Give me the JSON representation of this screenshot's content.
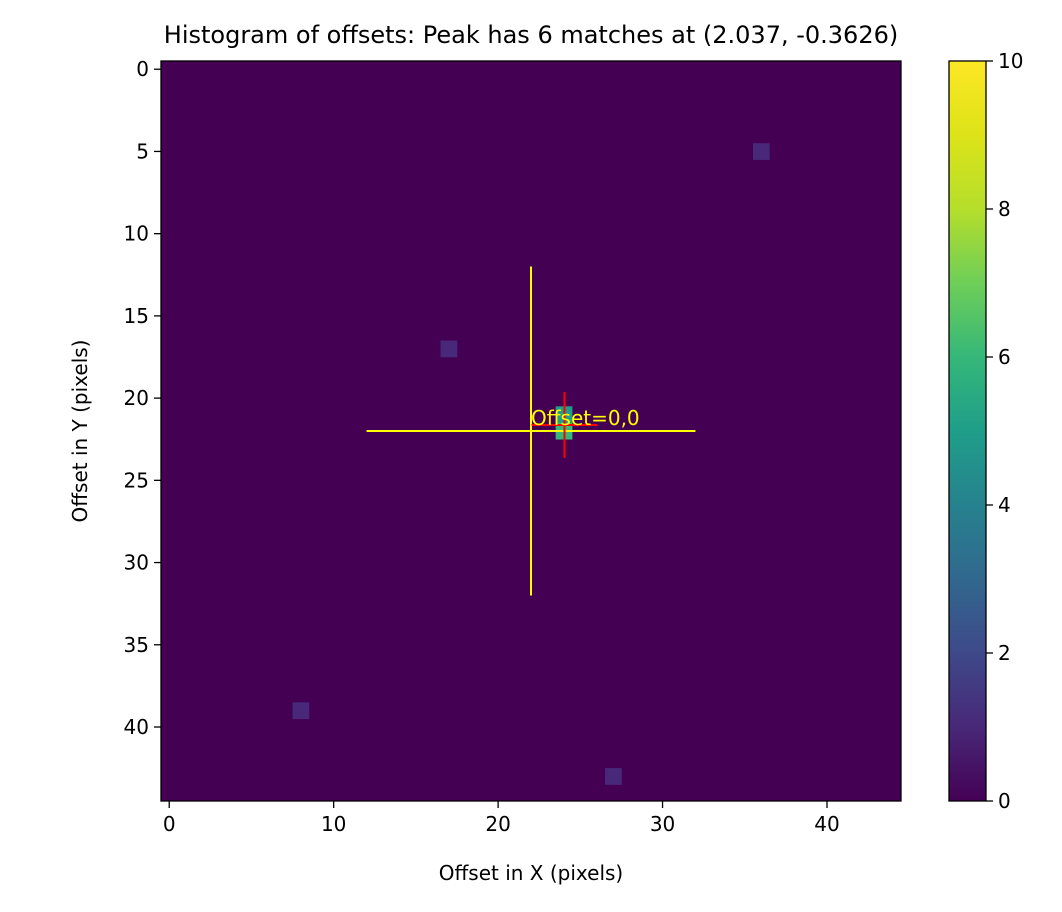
{
  "chart_data": {
    "type": "heatmap",
    "title": "Histogram of offsets: Peak has 6 matches at (2.037, -0.3626)",
    "xlabel": "Offset in X (pixels)",
    "ylabel": "Offset in Y (pixels)",
    "grid_size": [
      45,
      45
    ],
    "xlim": [
      -0.5,
      44.5
    ],
    "ylim": [
      44.5,
      -0.5
    ],
    "xticks": [
      "0",
      "10",
      "20",
      "30",
      "40"
    ],
    "yticks": [
      "0",
      "5",
      "10",
      "15",
      "20",
      "25",
      "30",
      "35",
      "40"
    ],
    "background_value": 0,
    "cells": [
      {
        "x": 36,
        "y": 5,
        "value": 1
      },
      {
        "x": 17,
        "y": 17,
        "value": 1
      },
      {
        "x": 24,
        "y": 21,
        "value": 5
      },
      {
        "x": 24,
        "y": 22,
        "value": 6
      },
      {
        "x": 8,
        "y": 39,
        "value": 1
      },
      {
        "x": 27,
        "y": 43,
        "value": 1
      }
    ],
    "colorbar": {
      "min": 0,
      "max": 10,
      "ticks": [
        "0",
        "2",
        "4",
        "6",
        "8",
        "10"
      ],
      "colormap": "viridis"
    },
    "zero_offset_marker": {
      "x": 22,
      "y": 22,
      "half_length": 10,
      "color": "#ffff00",
      "label": "Offset=0,0"
    },
    "peak_marker": {
      "x": 24.037,
      "y": 21.6374,
      "half_length": 2,
      "color": "#ff0000"
    }
  }
}
